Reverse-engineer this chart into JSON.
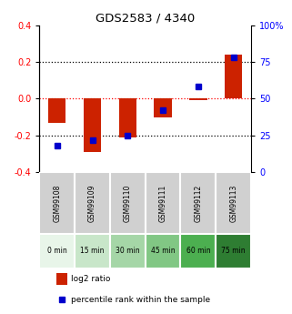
{
  "title": "GDS2583 / 4340",
  "samples": [
    "GSM99108",
    "GSM99109",
    "GSM99110",
    "GSM99111",
    "GSM99112",
    "GSM99113"
  ],
  "time_labels": [
    "0 min",
    "15 min",
    "30 min",
    "45 min",
    "60 min",
    "75 min"
  ],
  "time_colors": [
    "#e8f5e9",
    "#c8e6c9",
    "#a5d6a7",
    "#81c784",
    "#4caf50",
    "#2e7d32"
  ],
  "log2_ratio": [
    -0.13,
    -0.29,
    -0.21,
    -0.1,
    -0.01,
    0.24
  ],
  "pct_rank": [
    18,
    22,
    25,
    42,
    58,
    78
  ],
  "bar_color": "#cc2200",
  "dot_color": "#0000cc",
  "ylim": [
    -0.4,
    0.4
  ],
  "y2lim": [
    0,
    100
  ],
  "yticks": [
    -0.4,
    -0.2,
    0.0,
    0.2,
    0.4
  ],
  "y2ticks": [
    0,
    25,
    50,
    75,
    100
  ],
  "background_color": "#ffffff",
  "sample_bg": "#d0d0d0"
}
